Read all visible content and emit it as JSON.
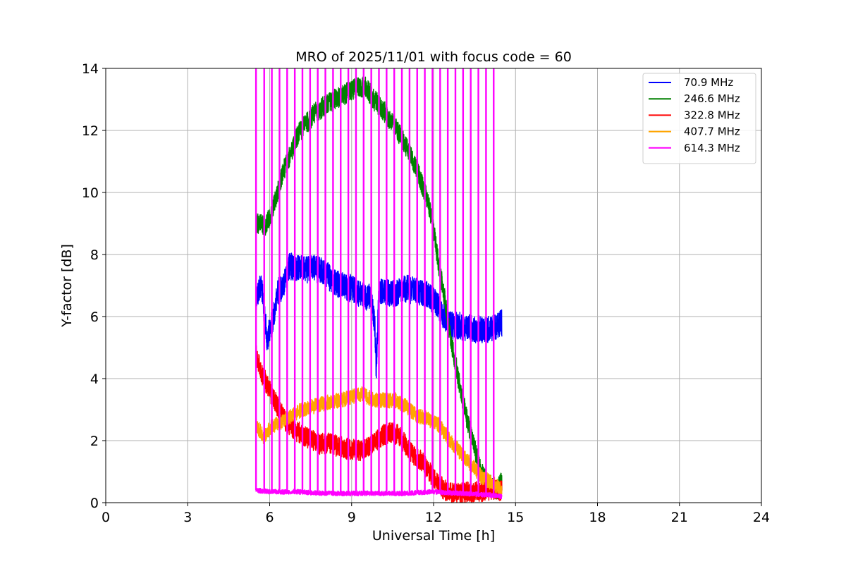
{
  "chart_data": {
    "type": "line",
    "title": "MRO of 2025/11/01 with focus code = 60",
    "xlabel": "Universal Time [h]",
    "ylabel": "Y-factor [dB]",
    "xlim": [
      0,
      24
    ],
    "ylim": [
      0,
      14
    ],
    "xticks": [
      0,
      3,
      6,
      9,
      12,
      15,
      18,
      21,
      24
    ],
    "yticks": [
      0,
      2,
      4,
      6,
      8,
      10,
      12,
      14
    ],
    "grid": true,
    "legend_position": "top-right",
    "series": [
      {
        "name": " 70.9 MHz",
        "color": "#0000ff",
        "noise": 0.45,
        "points": [
          [
            5.5,
            6.6
          ],
          [
            5.7,
            7.0
          ],
          [
            5.9,
            5.3
          ],
          [
            6.1,
            5.8
          ],
          [
            6.3,
            6.8
          ],
          [
            6.5,
            7.0
          ],
          [
            6.7,
            7.6
          ],
          [
            7.0,
            7.6
          ],
          [
            7.3,
            7.5
          ],
          [
            7.6,
            7.6
          ],
          [
            8.0,
            7.4
          ],
          [
            8.3,
            7.2
          ],
          [
            8.6,
            7.0
          ],
          [
            9.0,
            6.9
          ],
          [
            9.4,
            6.7
          ],
          [
            9.7,
            6.6
          ],
          [
            9.85,
            5.7
          ],
          [
            9.9,
            4.3
          ],
          [
            10.0,
            6.8
          ],
          [
            10.3,
            6.8
          ],
          [
            10.6,
            6.7
          ],
          [
            11.0,
            6.9
          ],
          [
            11.4,
            6.8
          ],
          [
            11.8,
            6.7
          ],
          [
            12.2,
            6.3
          ],
          [
            12.4,
            6.0
          ],
          [
            12.7,
            5.7
          ],
          [
            13.0,
            5.7
          ],
          [
            13.4,
            5.6
          ],
          [
            13.8,
            5.6
          ],
          [
            14.2,
            5.6
          ],
          [
            14.5,
            5.8
          ]
        ]
      },
      {
        "name": "246.6 MHz",
        "color": "#008000",
        "noise": 0.35,
        "points": [
          [
            5.5,
            9.0
          ],
          [
            5.8,
            8.9
          ],
          [
            6.0,
            9.2
          ],
          [
            6.3,
            10.0
          ],
          [
            6.5,
            10.7
          ],
          [
            6.8,
            11.3
          ],
          [
            7.0,
            11.8
          ],
          [
            7.3,
            12.2
          ],
          [
            7.6,
            12.5
          ],
          [
            8.0,
            12.8
          ],
          [
            8.4,
            13.0
          ],
          [
            8.8,
            13.2
          ],
          [
            9.2,
            13.4
          ],
          [
            9.5,
            13.4
          ],
          [
            9.8,
            13.0
          ],
          [
            10.2,
            12.6
          ],
          [
            10.6,
            12.1
          ],
          [
            11.0,
            11.5
          ],
          [
            11.4,
            10.7
          ],
          [
            11.8,
            9.7
          ],
          [
            12.0,
            8.8
          ],
          [
            12.2,
            7.6
          ],
          [
            12.4,
            6.6
          ],
          [
            12.6,
            5.4
          ],
          [
            12.8,
            4.5
          ],
          [
            13.0,
            3.6
          ],
          [
            13.2,
            2.8
          ],
          [
            13.4,
            2.1
          ],
          [
            13.6,
            1.4
          ],
          [
            13.8,
            0.9
          ],
          [
            14.0,
            0.6
          ],
          [
            14.3,
            0.4
          ],
          [
            14.5,
            0.7
          ]
        ]
      },
      {
        "name": "322.8 MHz",
        "color": "#ff0000",
        "noise": 0.35,
        "points": [
          [
            5.5,
            4.8
          ],
          [
            5.7,
            4.2
          ],
          [
            6.0,
            3.6
          ],
          [
            6.3,
            3.1
          ],
          [
            6.6,
            2.6
          ],
          [
            7.0,
            2.3
          ],
          [
            7.4,
            2.1
          ],
          [
            7.8,
            1.9
          ],
          [
            8.2,
            1.9
          ],
          [
            8.6,
            1.8
          ],
          [
            9.0,
            1.7
          ],
          [
            9.4,
            1.7
          ],
          [
            9.8,
            1.9
          ],
          [
            10.2,
            2.2
          ],
          [
            10.5,
            2.3
          ],
          [
            10.8,
            2.1
          ],
          [
            11.2,
            1.6
          ],
          [
            11.6,
            1.3
          ],
          [
            12.0,
            0.8
          ],
          [
            12.4,
            0.4
          ],
          [
            12.8,
            0.3
          ],
          [
            13.2,
            0.35
          ],
          [
            13.6,
            0.35
          ],
          [
            14.0,
            0.4
          ],
          [
            14.5,
            0.4
          ]
        ]
      },
      {
        "name": "407.7 MHz",
        "color": "#ffa500",
        "noise": 0.25,
        "points": [
          [
            5.5,
            2.5
          ],
          [
            5.8,
            2.1
          ],
          [
            6.0,
            2.4
          ],
          [
            6.4,
            2.6
          ],
          [
            6.8,
            2.8
          ],
          [
            7.2,
            3.0
          ],
          [
            7.6,
            3.1
          ],
          [
            8.0,
            3.2
          ],
          [
            8.5,
            3.3
          ],
          [
            9.0,
            3.4
          ],
          [
            9.4,
            3.5
          ],
          [
            9.8,
            3.3
          ],
          [
            10.2,
            3.3
          ],
          [
            10.6,
            3.3
          ],
          [
            11.0,
            3.1
          ],
          [
            11.4,
            2.8
          ],
          [
            11.8,
            2.7
          ],
          [
            12.2,
            2.5
          ],
          [
            12.6,
            2.0
          ],
          [
            13.0,
            1.6
          ],
          [
            13.4,
            1.2
          ],
          [
            13.8,
            0.8
          ],
          [
            14.2,
            0.6
          ],
          [
            14.5,
            0.4
          ]
        ]
      },
      {
        "name": "614.3 MHz",
        "color": "#ff00ff",
        "noise": 0.08,
        "points": [
          [
            5.5,
            0.4
          ],
          [
            6.0,
            0.35
          ],
          [
            7.0,
            0.35
          ],
          [
            8.0,
            0.3
          ],
          [
            9.0,
            0.3
          ],
          [
            10.0,
            0.3
          ],
          [
            11.0,
            0.3
          ],
          [
            12.0,
            0.35
          ],
          [
            13.0,
            0.3
          ],
          [
            14.0,
            0.25
          ],
          [
            14.5,
            0.2
          ]
        ],
        "spikes": [
          5.5,
          5.8,
          6.08,
          6.36,
          6.64,
          6.92,
          7.2,
          7.48,
          7.76,
          8.04,
          8.32,
          8.6,
          8.88,
          9.16,
          9.44,
          9.72,
          10.0,
          10.28,
          10.56,
          10.84,
          11.12,
          11.4,
          11.68,
          11.96,
          12.24,
          12.52,
          12.8,
          13.08,
          13.36,
          13.64,
          13.92,
          14.2
        ]
      }
    ]
  }
}
